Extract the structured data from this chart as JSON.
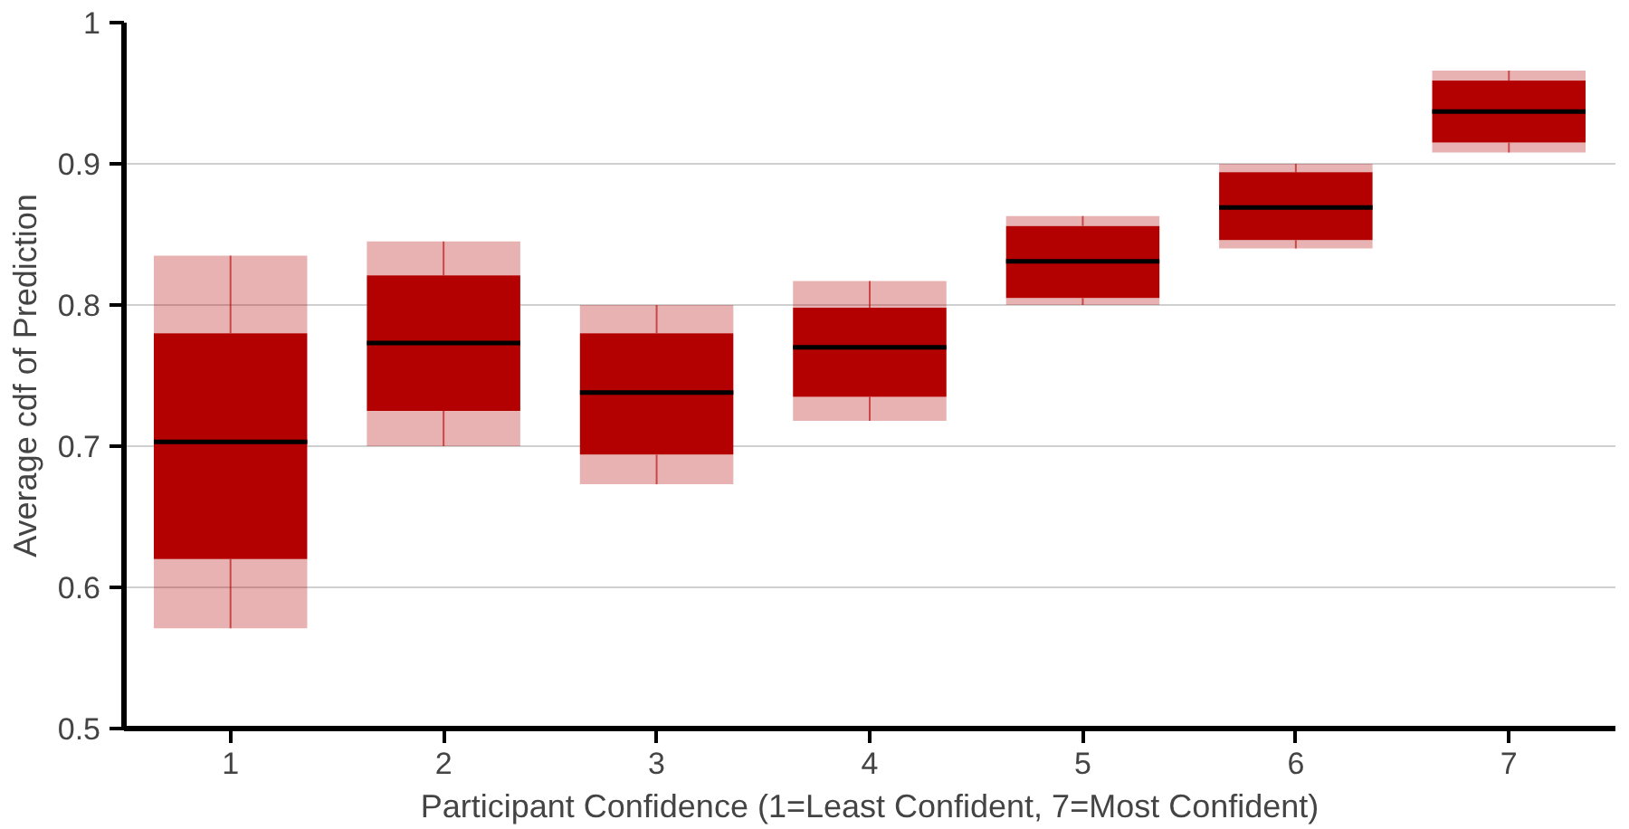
{
  "chart_data": {
    "type": "box",
    "xlabel": "Participant Confidence (1=Least Confident, 7=Most Confident)",
    "ylabel": "Average cdf of Prediction",
    "categories": [
      "1",
      "2",
      "3",
      "4",
      "5",
      "6",
      "7"
    ],
    "color": "#b30000",
    "boxes": [
      {
        "low": 0.571,
        "q1": 0.62,
        "median": 0.703,
        "q3": 0.78,
        "high": 0.835
      },
      {
        "low": 0.7,
        "q1": 0.725,
        "median": 0.773,
        "q3": 0.821,
        "high": 0.845
      },
      {
        "low": 0.673,
        "q1": 0.694,
        "median": 0.738,
        "q3": 0.78,
        "high": 0.8
      },
      {
        "low": 0.718,
        "q1": 0.735,
        "median": 0.77,
        "q3": 0.798,
        "high": 0.817
      },
      {
        "low": 0.8,
        "q1": 0.805,
        "median": 0.831,
        "q3": 0.856,
        "high": 0.863
      },
      {
        "low": 0.84,
        "q1": 0.846,
        "median": 0.869,
        "q3": 0.894,
        "high": 0.9
      },
      {
        "low": 0.908,
        "q1": 0.915,
        "median": 0.937,
        "q3": 0.959,
        "high": 0.966
      }
    ],
    "ylim": [
      0.5,
      1
    ],
    "yticks": [
      0.5,
      0.6,
      0.7,
      0.8,
      0.9,
      1
    ],
    "grid": "y"
  }
}
